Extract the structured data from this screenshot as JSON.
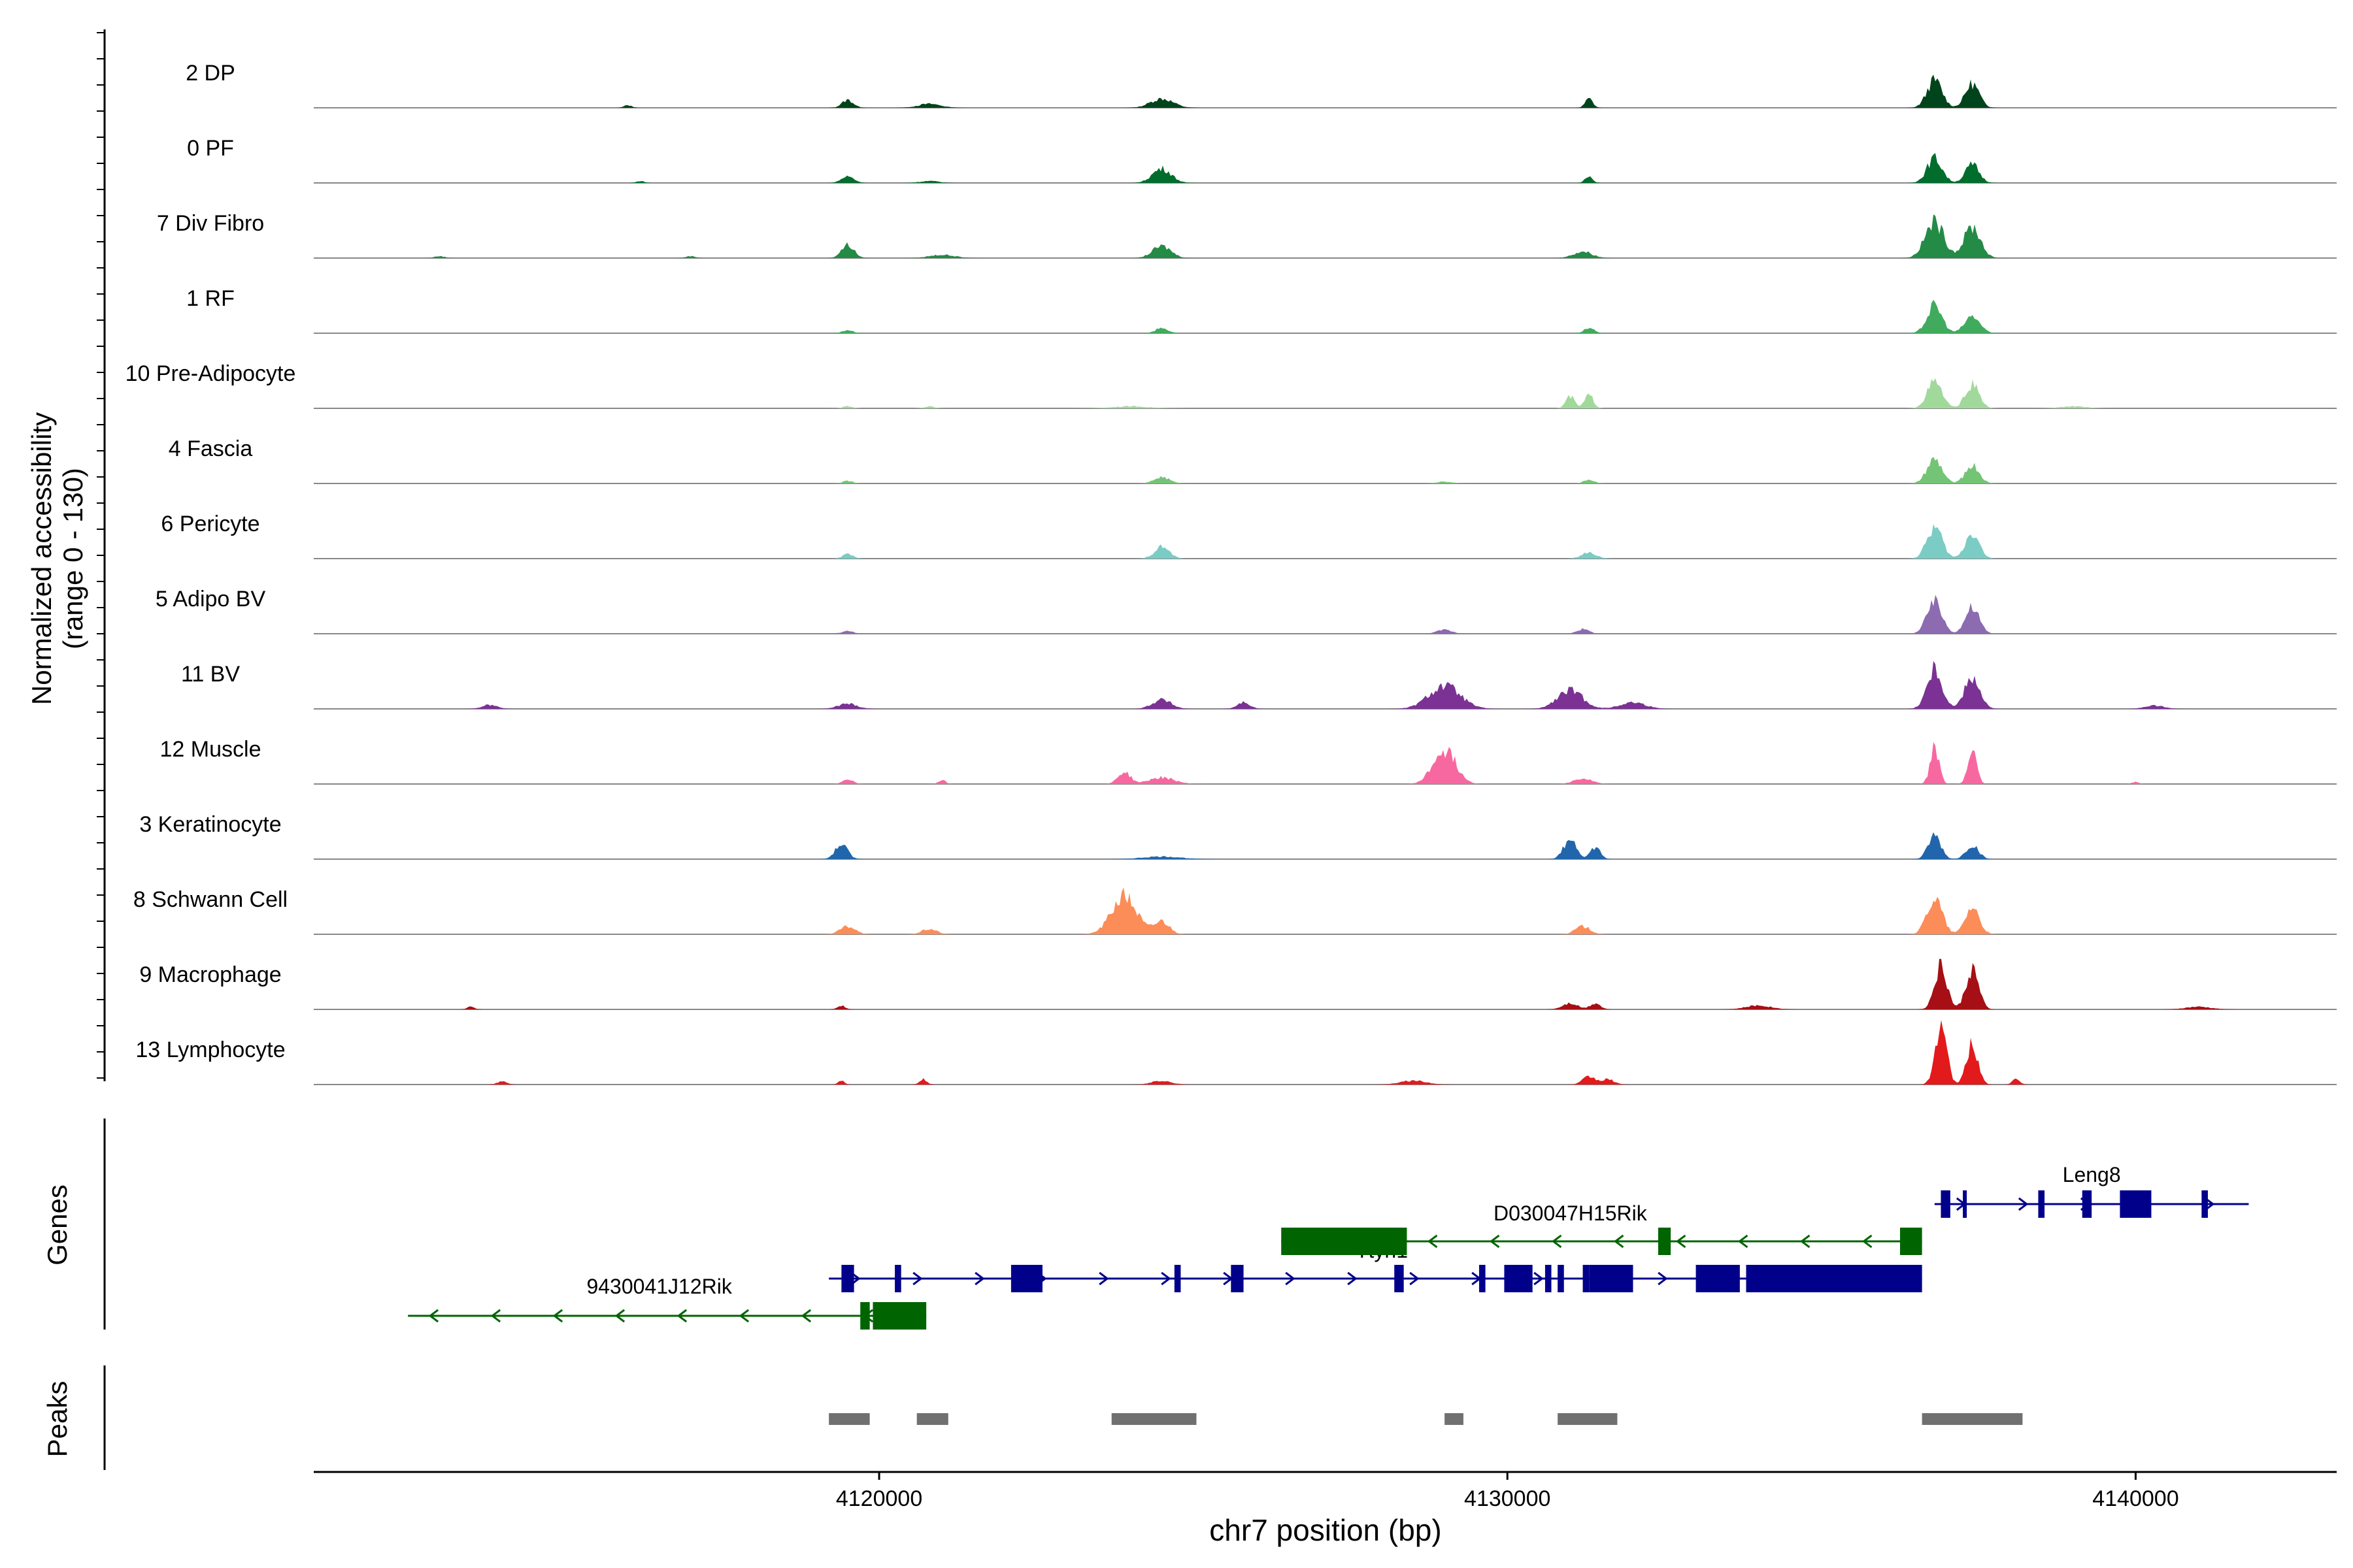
{
  "chart_data": {
    "type": "coverage",
    "x_range": [
      4111000,
      4143200
    ],
    "x_ticks": [
      4120000,
      4130000,
      4140000
    ],
    "x_tick_labels": [
      "4120000",
      "4130000",
      "4140000"
    ],
    "xlabel": "chr7 position (bp)",
    "ylabel_line1": "Normalized accessibility",
    "ylabel_line2": "(range 0 - 130)",
    "y_max": 130,
    "genes_label": "Genes",
    "peaks_label": "Peaks",
    "tracks": [
      {
        "name": "2 DP",
        "color": "#00441b",
        "peaks": [
          [
            4116000,
            0.04,
            60
          ],
          [
            4119500,
            0.12,
            90
          ],
          [
            4120800,
            0.06,
            180
          ],
          [
            4124500,
            0.14,
            180
          ],
          [
            4131300,
            0.14,
            60
          ],
          [
            4136800,
            0.42,
            120
          ],
          [
            4137400,
            0.37,
            110
          ]
        ]
      },
      {
        "name": "0 PF",
        "color": "#006d2c",
        "peaks": [
          [
            4116200,
            0.03,
            60
          ],
          [
            4119500,
            0.1,
            100
          ],
          [
            4120800,
            0.03,
            150
          ],
          [
            4124500,
            0.22,
            150
          ],
          [
            4131300,
            0.1,
            60
          ],
          [
            4136800,
            0.38,
            120
          ],
          [
            4137400,
            0.28,
            110
          ]
        ]
      },
      {
        "name": "7 Div Fibro",
        "color": "#238b45",
        "peaks": [
          [
            4113000,
            0.03,
            80
          ],
          [
            4117000,
            0.03,
            80
          ],
          [
            4119500,
            0.2,
            100
          ],
          [
            4121000,
            0.05,
            200
          ],
          [
            4124500,
            0.18,
            150
          ],
          [
            4131200,
            0.1,
            150
          ],
          [
            4136800,
            0.55,
            150
          ],
          [
            4137400,
            0.48,
            130
          ]
        ]
      },
      {
        "name": "1 RF",
        "color": "#41ab5d",
        "peaks": [
          [
            4119500,
            0.05,
            80
          ],
          [
            4124500,
            0.08,
            100
          ],
          [
            4131300,
            0.08,
            80
          ],
          [
            4136800,
            0.42,
            120
          ],
          [
            4137400,
            0.26,
            120
          ]
        ]
      },
      {
        "name": "10 Pre-Adipocyte",
        "color": "#a1d99b",
        "peaks": [
          [
            4119500,
            0.03,
            80
          ],
          [
            4120800,
            0.03,
            80
          ],
          [
            4124000,
            0.03,
            300
          ],
          [
            4131000,
            0.18,
            70
          ],
          [
            4131300,
            0.2,
            70
          ],
          [
            4136800,
            0.4,
            120
          ],
          [
            4137400,
            0.36,
            110
          ],
          [
            4139000,
            0.03,
            200
          ]
        ]
      },
      {
        "name": "4 Fascia",
        "color": "#74c476",
        "peaks": [
          [
            4119500,
            0.04,
            80
          ],
          [
            4124500,
            0.1,
            120
          ],
          [
            4129000,
            0.03,
            120
          ],
          [
            4131300,
            0.06,
            80
          ],
          [
            4136800,
            0.36,
            120
          ],
          [
            4137400,
            0.28,
            110
          ]
        ]
      },
      {
        "name": "6 Pericyte",
        "color": "#7bccc4",
        "peaks": [
          [
            4119500,
            0.07,
            80
          ],
          [
            4124500,
            0.18,
            120
          ],
          [
            4131300,
            0.09,
            120
          ],
          [
            4136800,
            0.48,
            120
          ],
          [
            4137400,
            0.4,
            110
          ]
        ]
      },
      {
        "name": "5 Adipo BV",
        "color": "#8c6bb1",
        "peaks": [
          [
            4119500,
            0.04,
            100
          ],
          [
            4129000,
            0.06,
            120
          ],
          [
            4131200,
            0.07,
            100
          ],
          [
            4136800,
            0.48,
            120
          ],
          [
            4137400,
            0.4,
            110
          ]
        ]
      },
      {
        "name": "11 BV",
        "color": "#7b3294",
        "peaks": [
          [
            4113800,
            0.06,
            120
          ],
          [
            4119500,
            0.08,
            150
          ],
          [
            4124500,
            0.14,
            150
          ],
          [
            4125800,
            0.1,
            100
          ],
          [
            4129000,
            0.35,
            250
          ],
          [
            4131000,
            0.28,
            200
          ],
          [
            4132000,
            0.1,
            200
          ],
          [
            4136800,
            0.62,
            120
          ],
          [
            4137400,
            0.5,
            120
          ],
          [
            4140300,
            0.05,
            150
          ]
        ]
      },
      {
        "name": "12 Muscle",
        "color": "#f768a1",
        "peaks": [
          [
            4119500,
            0.08,
            80
          ],
          [
            4121000,
            0.06,
            60
          ],
          [
            4123900,
            0.18,
            100
          ],
          [
            4124500,
            0.1,
            200
          ],
          [
            4129000,
            0.52,
            180
          ],
          [
            4131200,
            0.08,
            150
          ],
          [
            4136800,
            0.55,
            70
          ],
          [
            4137400,
            0.52,
            70
          ],
          [
            4140000,
            0.03,
            60
          ]
        ]
      },
      {
        "name": "3 Keratinocyte",
        "color": "#2166ac",
        "peaks": [
          [
            4119400,
            0.22,
            100
          ],
          [
            4124500,
            0.04,
            300
          ],
          [
            4131000,
            0.32,
            100
          ],
          [
            4131400,
            0.18,
            80
          ],
          [
            4136800,
            0.36,
            100
          ],
          [
            4137400,
            0.22,
            100
          ]
        ]
      },
      {
        "name": "8 Schwann Cell",
        "color": "#fc8d59",
        "peaks": [
          [
            4119500,
            0.12,
            120
          ],
          [
            4120800,
            0.08,
            120
          ],
          [
            4123900,
            0.58,
            200
          ],
          [
            4124500,
            0.2,
            120
          ],
          [
            4131200,
            0.12,
            120
          ],
          [
            4136800,
            0.55,
            120
          ],
          [
            4137400,
            0.42,
            110
          ]
        ]
      },
      {
        "name": "9 Macrophage",
        "color": "#a50f15",
        "peaks": [
          [
            4113500,
            0.04,
            60
          ],
          [
            4119400,
            0.06,
            60
          ],
          [
            4131000,
            0.1,
            120
          ],
          [
            4131400,
            0.1,
            80
          ],
          [
            4134000,
            0.06,
            200
          ],
          [
            4136900,
            0.65,
            100
          ],
          [
            4137400,
            0.62,
            100
          ],
          [
            4141000,
            0.04,
            200
          ]
        ]
      },
      {
        "name": "13 Lymphocyte",
        "color": "#e31a1c",
        "peaks": [
          [
            4114000,
            0.05,
            80
          ],
          [
            4119400,
            0.06,
            50
          ],
          [
            4120700,
            0.08,
            60
          ],
          [
            4124500,
            0.06,
            150
          ],
          [
            4128500,
            0.06,
            200
          ],
          [
            4131300,
            0.12,
            100
          ],
          [
            4131600,
            0.08,
            100
          ],
          [
            4136900,
            0.92,
            90
          ],
          [
            4137400,
            0.62,
            90
          ],
          [
            4138100,
            0.08,
            60
          ]
        ]
      }
    ],
    "genes": [
      {
        "name": "Leng8",
        "strand": "+",
        "start": 4136800,
        "end": 4141800,
        "row": 0,
        "color": "#00008b",
        "exons": [
          [
            4136900,
            4137050
          ],
          [
            4137250,
            4137300
          ],
          [
            4138450,
            4138550
          ],
          [
            4139150,
            4139300
          ],
          [
            4139750,
            4140250
          ],
          [
            4141050,
            4141150
          ]
        ]
      },
      {
        "name": "D030047H15Rik",
        "strand": "-",
        "start": 4128400,
        "end": 4136600,
        "row": 1,
        "color": "#006400",
        "exons": [
          [
            4132400,
            4132600
          ],
          [
            4136250,
            4136600
          ]
        ]
      },
      {
        "name": "Ttyh1",
        "strand": "+",
        "start": 4119200,
        "end": 4136600,
        "row": 2,
        "color": "#00008b",
        "exons": [
          [
            4119400,
            4119600
          ],
          [
            4120250,
            4120350
          ],
          [
            4122100,
            4122600
          ],
          [
            4124700,
            4124800
          ],
          [
            4125600,
            4125800
          ],
          [
            4128200,
            4128350
          ],
          [
            4129550,
            4129650
          ],
          [
            4129950,
            4130400
          ],
          [
            4130600,
            4130700
          ],
          [
            4130800,
            4130900
          ],
          [
            4131200,
            4131300
          ],
          [
            4131300,
            4132000
          ],
          [
            4133000,
            4133700
          ],
          [
            4133800,
            4136600
          ]
        ]
      },
      {
        "name": "9430041J12Rik",
        "strand": "-",
        "start": 4112500,
        "end": 4120750,
        "row": 3,
        "color": "#006400",
        "exons": [
          [
            4119700,
            4119850
          ],
          [
            4119900,
            4120750
          ]
        ]
      },
      {
        "name": "",
        "strand": "-",
        "start": 4126400,
        "end": 4128400,
        "row": 1,
        "color": "#006400",
        "exons": [
          [
            4126400,
            4128400
          ]
        ]
      }
    ],
    "peaks_regions": [
      [
        4119200,
        4119850
      ],
      [
        4120600,
        4121100
      ],
      [
        4123700,
        4125050
      ],
      [
        4129000,
        4129300
      ],
      [
        4130800,
        4131750
      ],
      [
        4136600,
        4138200
      ]
    ]
  }
}
